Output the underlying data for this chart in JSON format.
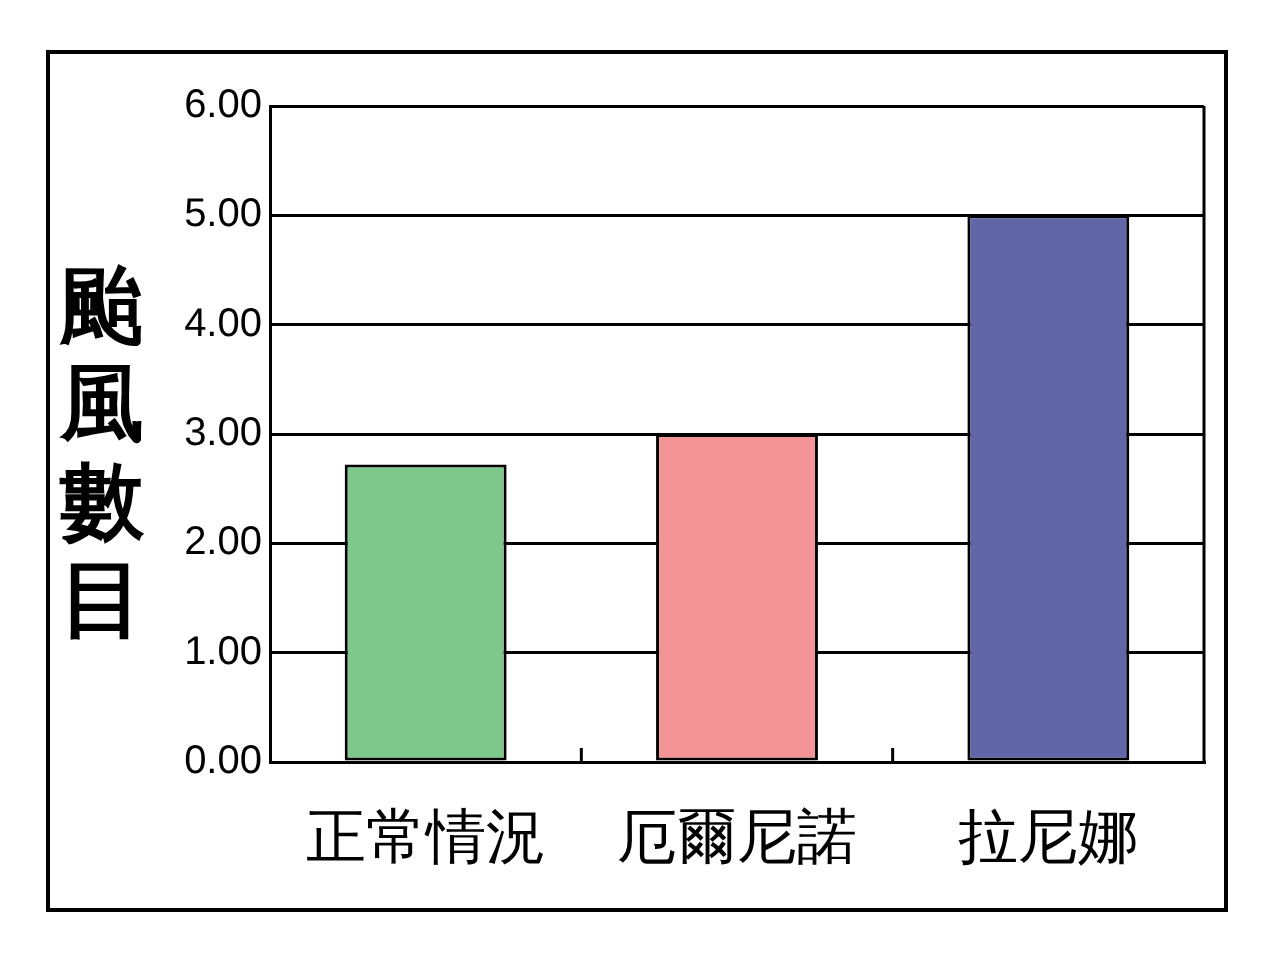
{
  "chart_data": {
    "type": "bar",
    "categories": [
      "正常情況",
      "厄爾尼諾",
      "拉尼娜"
    ],
    "values": [
      2.72,
      3.0,
      5.0
    ],
    "colors": [
      "#7dc88a",
      "#f49496",
      "#6066a8"
    ],
    "ylabel": "颱風數目",
    "ylim": [
      0,
      6
    ],
    "yticks": [
      {
        "value": 0,
        "label": "0.00"
      },
      {
        "value": 1,
        "label": "1.00"
      },
      {
        "value": 2,
        "label": "2.00"
      },
      {
        "value": 3,
        "label": "3.00"
      },
      {
        "value": 4,
        "label": "4.00"
      },
      {
        "value": 5,
        "label": "5.00"
      },
      {
        "value": 6,
        "label": "6.00"
      }
    ],
    "grid": "y"
  }
}
